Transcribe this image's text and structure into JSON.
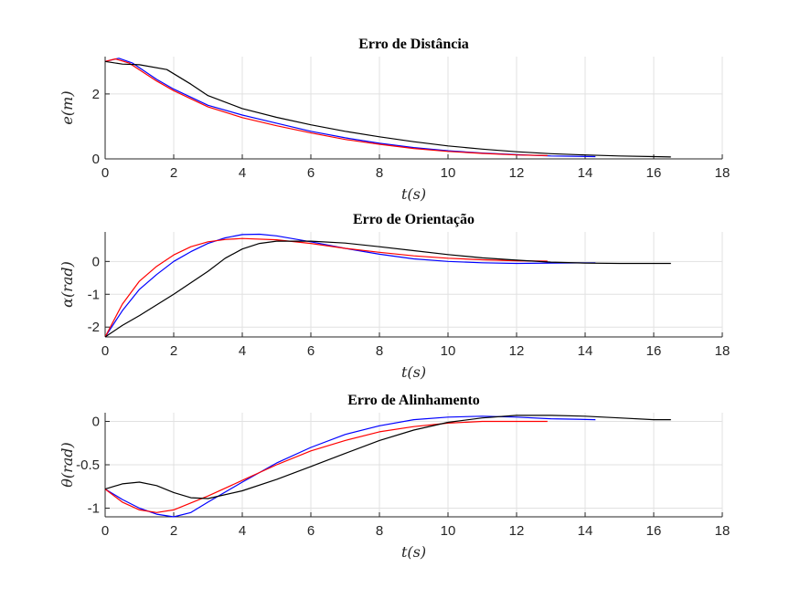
{
  "chart_data": [
    {
      "type": "line",
      "title": "Erro de Distância",
      "xlabel": "t(s)",
      "ylabel": "e(m)",
      "xlim": [
        0,
        18
      ],
      "ylim": [
        0,
        3.15
      ],
      "xticks": [
        0,
        2,
        4,
        6,
        8,
        10,
        12,
        14,
        16,
        18
      ],
      "yticks": [
        0,
        2
      ],
      "grid": true,
      "series": [
        {
          "color": "#0000ff",
          "points": [
            [
              0,
              3.0
            ],
            [
              0.4,
              3.1
            ],
            [
              0.8,
              2.95
            ],
            [
              1.5,
              2.45
            ],
            [
              2,
              2.15
            ],
            [
              3,
              1.65
            ],
            [
              4,
              1.35
            ],
            [
              5,
              1.1
            ],
            [
              6,
              0.85
            ],
            [
              7,
              0.65
            ],
            [
              8,
              0.48
            ],
            [
              9,
              0.35
            ],
            [
              10,
              0.25
            ],
            [
              11,
              0.18
            ],
            [
              12,
              0.13
            ],
            [
              13,
              0.09
            ],
            [
              14.3,
              0.07
            ]
          ]
        },
        {
          "color": "#ff0000",
          "points": [
            [
              0,
              3.0
            ],
            [
              0.3,
              3.08
            ],
            [
              0.7,
              2.95
            ],
            [
              1.5,
              2.4
            ],
            [
              2,
              2.1
            ],
            [
              3,
              1.6
            ],
            [
              4,
              1.27
            ],
            [
              5,
              1.02
            ],
            [
              6,
              0.8
            ],
            [
              7,
              0.6
            ],
            [
              8,
              0.45
            ],
            [
              9,
              0.32
            ],
            [
              10,
              0.23
            ],
            [
              11,
              0.17
            ],
            [
              12,
              0.12
            ],
            [
              12.9,
              0.1
            ]
          ]
        },
        {
          "color": "#000000",
          "points": [
            [
              0,
              3.0
            ],
            [
              0.5,
              2.92
            ],
            [
              1,
              2.9
            ],
            [
              1.8,
              2.75
            ],
            [
              2.5,
              2.3
            ],
            [
              3,
              1.95
            ],
            [
              4,
              1.55
            ],
            [
              5,
              1.28
            ],
            [
              6,
              1.05
            ],
            [
              7,
              0.85
            ],
            [
              8,
              0.68
            ],
            [
              9,
              0.53
            ],
            [
              10,
              0.4
            ],
            [
              11,
              0.3
            ],
            [
              12,
              0.22
            ],
            [
              13,
              0.16
            ],
            [
              14,
              0.12
            ],
            [
              15,
              0.09
            ],
            [
              16,
              0.07
            ],
            [
              16.5,
              0.06
            ]
          ]
        }
      ]
    },
    {
      "type": "line",
      "title": "Erro de Orientação",
      "xlabel": "t(s)",
      "ylabel": "α(rad)",
      "xlim": [
        0,
        18
      ],
      "ylim": [
        -2.3,
        0.9
      ],
      "xticks": [
        0,
        2,
        4,
        6,
        8,
        10,
        12,
        14,
        16,
        18
      ],
      "yticks": [
        -2,
        -1,
        0
      ],
      "grid": true,
      "series": [
        {
          "color": "#0000ff",
          "points": [
            [
              0,
              -2.3
            ],
            [
              0.5,
              -1.5
            ],
            [
              1,
              -0.85
            ],
            [
              1.5,
              -0.4
            ],
            [
              2,
              0.0
            ],
            [
              2.5,
              0.3
            ],
            [
              3,
              0.55
            ],
            [
              3.5,
              0.72
            ],
            [
              4,
              0.82
            ],
            [
              4.5,
              0.83
            ],
            [
              5,
              0.78
            ],
            [
              6,
              0.6
            ],
            [
              7,
              0.4
            ],
            [
              8,
              0.22
            ],
            [
              9,
              0.08
            ],
            [
              10,
              0.0
            ],
            [
              11,
              -0.04
            ],
            [
              12,
              -0.06
            ],
            [
              13,
              -0.05
            ],
            [
              14.3,
              -0.04
            ]
          ]
        },
        {
          "color": "#ff0000",
          "points": [
            [
              0,
              -2.3
            ],
            [
              0.5,
              -1.3
            ],
            [
              1,
              -0.6
            ],
            [
              1.5,
              -0.15
            ],
            [
              2,
              0.2
            ],
            [
              2.5,
              0.45
            ],
            [
              3,
              0.6
            ],
            [
              3.5,
              0.67
            ],
            [
              4,
              0.7
            ],
            [
              5,
              0.66
            ],
            [
              6,
              0.55
            ],
            [
              7,
              0.4
            ],
            [
              8,
              0.28
            ],
            [
              9,
              0.17
            ],
            [
              10,
              0.1
            ],
            [
              11,
              0.05
            ],
            [
              12,
              0.02
            ],
            [
              12.9,
              0.01
            ]
          ]
        },
        {
          "color": "#000000",
          "points": [
            [
              0,
              -2.3
            ],
            [
              0.5,
              -1.95
            ],
            [
              1,
              -1.65
            ],
            [
              2,
              -1.0
            ],
            [
              3,
              -0.3
            ],
            [
              3.5,
              0.1
            ],
            [
              4,
              0.38
            ],
            [
              4.5,
              0.55
            ],
            [
              5,
              0.62
            ],
            [
              6,
              0.62
            ],
            [
              7,
              0.56
            ],
            [
              8,
              0.45
            ],
            [
              9,
              0.33
            ],
            [
              10,
              0.21
            ],
            [
              11,
              0.11
            ],
            [
              12,
              0.04
            ],
            [
              13,
              -0.02
            ],
            [
              14,
              -0.05
            ],
            [
              15,
              -0.06
            ],
            [
              16,
              -0.06
            ],
            [
              16.5,
              -0.06
            ]
          ]
        }
      ]
    },
    {
      "type": "line",
      "title": "Erro de Alinhamento",
      "xlabel": "t(s)",
      "ylabel": "θ(rad)",
      "xlim": [
        0,
        18
      ],
      "ylim": [
        -1.1,
        0.1
      ],
      "xticks": [
        0,
        2,
        4,
        6,
        8,
        10,
        12,
        14,
        16,
        18
      ],
      "yticks": [
        -1,
        -0.5,
        0
      ],
      "grid": true,
      "series": [
        {
          "color": "#0000ff",
          "points": [
            [
              0,
              -0.78
            ],
            [
              0.5,
              -0.9
            ],
            [
              1,
              -1.0
            ],
            [
              1.5,
              -1.07
            ],
            [
              2,
              -1.1
            ],
            [
              2.5,
              -1.05
            ],
            [
              3,
              -0.93
            ],
            [
              4,
              -0.7
            ],
            [
              5,
              -0.48
            ],
            [
              6,
              -0.3
            ],
            [
              7,
              -0.15
            ],
            [
              8,
              -0.05
            ],
            [
              9,
              0.02
            ],
            [
              10,
              0.05
            ],
            [
              11,
              0.06
            ],
            [
              12,
              0.05
            ],
            [
              13,
              0.03
            ],
            [
              14.3,
              0.02
            ]
          ]
        },
        {
          "color": "#ff0000",
          "points": [
            [
              0,
              -0.78
            ],
            [
              0.5,
              -0.93
            ],
            [
              1,
              -1.02
            ],
            [
              1.5,
              -1.05
            ],
            [
              2,
              -1.02
            ],
            [
              3,
              -0.86
            ],
            [
              4,
              -0.68
            ],
            [
              5,
              -0.5
            ],
            [
              6,
              -0.34
            ],
            [
              7,
              -0.22
            ],
            [
              8,
              -0.12
            ],
            [
              9,
              -0.06
            ],
            [
              10,
              -0.02
            ],
            [
              11,
              0.0
            ],
            [
              12,
              0.0
            ],
            [
              12.9,
              0.0
            ]
          ]
        },
        {
          "color": "#000000",
          "points": [
            [
              0,
              -0.78
            ],
            [
              0.5,
              -0.72
            ],
            [
              1,
              -0.7
            ],
            [
              1.5,
              -0.74
            ],
            [
              2,
              -0.82
            ],
            [
              2.5,
              -0.88
            ],
            [
              3,
              -0.89
            ],
            [
              4,
              -0.8
            ],
            [
              5,
              -0.67
            ],
            [
              6,
              -0.52
            ],
            [
              7,
              -0.37
            ],
            [
              8,
              -0.22
            ],
            [
              9,
              -0.1
            ],
            [
              10,
              -0.01
            ],
            [
              11,
              0.04
            ],
            [
              12,
              0.07
            ],
            [
              13,
              0.07
            ],
            [
              14,
              0.06
            ],
            [
              15,
              0.04
            ],
            [
              16,
              0.02
            ],
            [
              16.5,
              0.02
            ]
          ]
        }
      ]
    }
  ]
}
